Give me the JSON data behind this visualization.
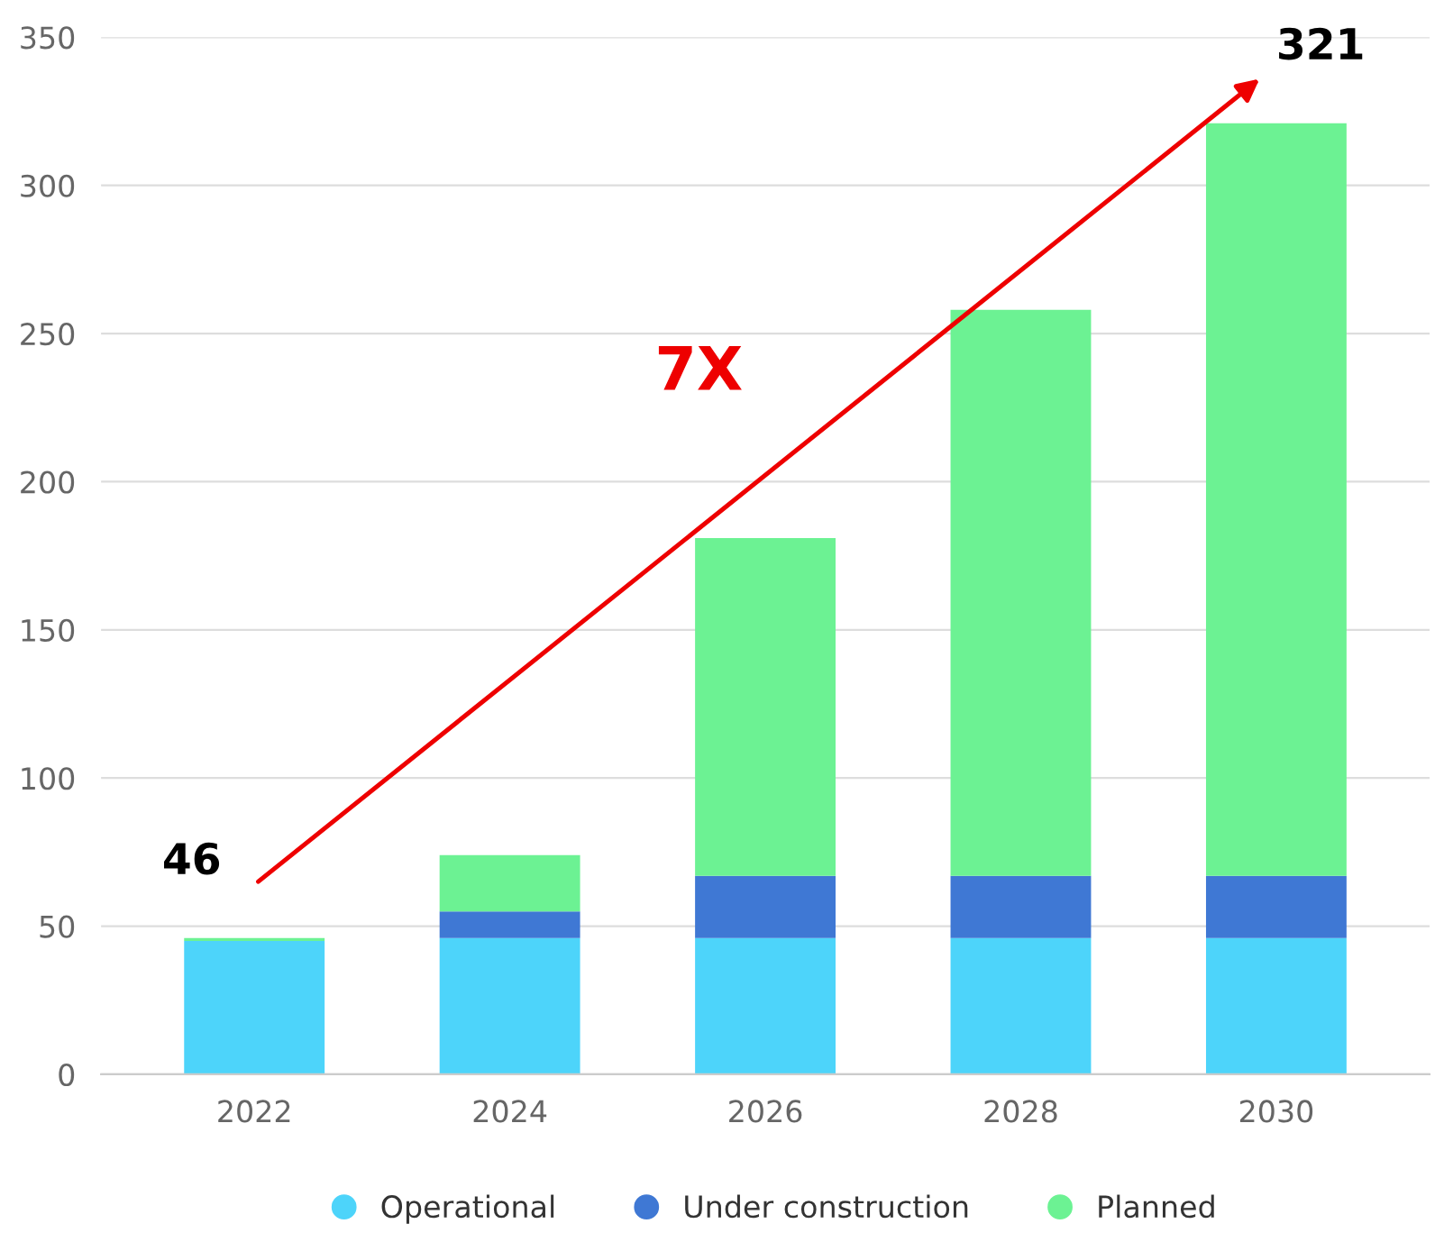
{
  "chart_data": {
    "type": "bar",
    "stacked": true,
    "categories": [
      "2022",
      "2024",
      "2026",
      "2028",
      "2030"
    ],
    "series": [
      {
        "name": "Operational",
        "color": "#4dd4fa",
        "values": [
          45,
          46,
          46,
          46,
          46
        ]
      },
      {
        "name": "Under construction",
        "color": "#3f78d4",
        "values": [
          0,
          9,
          21,
          21,
          21
        ]
      },
      {
        "name": "Planned",
        "color": "#6cf293",
        "values": [
          1,
          19,
          114,
          191,
          254
        ]
      }
    ],
    "ylim": [
      0,
      350
    ],
    "yticks": [
      0,
      50,
      100,
      150,
      200,
      250,
      300,
      350
    ],
    "grid": "y",
    "legend": "bottom",
    "marker": "circle",
    "annotations": [
      {
        "text": "46",
        "x": "2022",
        "y": 46
      },
      {
        "text": "321",
        "x": "2030",
        "y": 321
      },
      "7X"
    ]
  }
}
